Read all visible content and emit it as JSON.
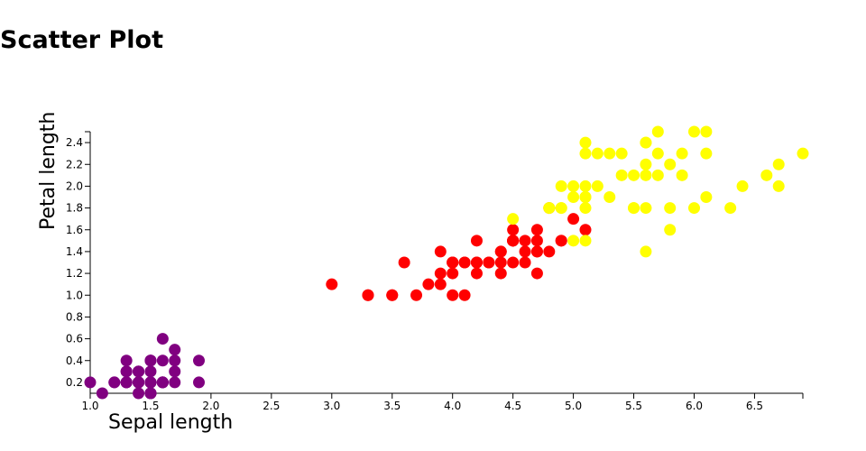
{
  "chart_data": {
    "type": "scatter",
    "title": "Scatter Plot",
    "x_label": "Sepal length",
    "y_label": "Petal length",
    "xlim": [
      1.0,
      6.9
    ],
    "ylim": [
      0.1,
      2.5
    ],
    "xticks": [
      {
        "value": 1.0,
        "label": "1.0"
      },
      {
        "value": 1.5,
        "label": "1.5"
      },
      {
        "value": 2.0,
        "label": "2.0"
      },
      {
        "value": 2.5,
        "label": "2.5"
      },
      {
        "value": 3.0,
        "label": "3.0"
      },
      {
        "value": 3.5,
        "label": "3.5"
      },
      {
        "value": 4.0,
        "label": "4.0"
      },
      {
        "value": 4.5,
        "label": "4.5"
      },
      {
        "value": 5.0,
        "label": "5.0"
      },
      {
        "value": 5.5,
        "label": "5.5"
      },
      {
        "value": 6.0,
        "label": "6.0"
      },
      {
        "value": 6.5,
        "label": "6.5"
      }
    ],
    "yticks": [
      0.2,
      0.4,
      0.6,
      0.8,
      {
        "value": 1.0,
        "label": "1.0"
      },
      1.2,
      1.4,
      1.6,
      1.8,
      {
        "value": 2.0,
        "label": "2.0"
      },
      2.2,
      2.4
    ],
    "series": [
      {
        "color": "purple",
        "x": [
          1.4,
          1.4,
          1.3,
          1.5,
          1.4,
          1.7,
          1.4,
          1.5,
          1.4,
          1.5,
          1.5,
          1.6,
          1.4,
          1.1,
          1.2,
          1.5,
          1.3,
          1.4,
          1.7,
          1.5,
          1.7,
          1.5,
          1.0,
          1.7,
          1.9,
          1.6,
          1.6,
          1.5,
          1.4,
          1.6,
          1.6,
          1.5,
          1.5,
          1.4,
          1.5,
          1.2,
          1.3,
          1.5,
          1.3,
          1.5,
          1.3,
          1.3,
          1.3,
          1.6,
          1.9,
          1.4,
          1.6,
          1.4,
          1.5,
          1.4
        ],
        "values": [
          0.2,
          0.2,
          0.2,
          0.2,
          0.2,
          0.4,
          0.3,
          0.2,
          0.2,
          0.1,
          0.2,
          0.2,
          0.1,
          0.1,
          0.2,
          0.4,
          0.4,
          0.3,
          0.3,
          0.3,
          0.2,
          0.4,
          0.2,
          0.5,
          0.2,
          0.2,
          0.4,
          0.2,
          0.2,
          0.2,
          0.2,
          0.4,
          0.1,
          0.2,
          0.1,
          0.2,
          0.2,
          0.1,
          0.2,
          0.2,
          0.3,
          0.3,
          0.2,
          0.6,
          0.4,
          0.3,
          0.2,
          0.2,
          0.2,
          0.2
        ]
      },
      {
        "color": "red",
        "x": [
          4.7,
          4.5,
          4.9,
          4.0,
          4.6,
          4.5,
          4.7,
          3.3,
          4.6,
          3.9,
          3.5,
          4.2,
          4.0,
          4.7,
          3.6,
          4.4,
          4.5,
          4.1,
          4.5,
          3.9,
          4.8,
          4.0,
          4.9,
          4.7,
          4.3,
          4.4,
          4.8,
          5.0,
          4.5,
          3.5,
          3.8,
          3.7,
          3.9,
          5.1,
          4.5,
          4.5,
          4.7,
          4.4,
          4.1,
          4.0,
          4.4,
          4.6,
          4.0,
          3.3,
          4.2,
          4.2,
          4.2,
          4.3,
          3.0,
          4.1
        ],
        "values": [
          1.4,
          1.5,
          1.5,
          1.3,
          1.5,
          1.3,
          1.6,
          1.0,
          1.3,
          1.4,
          1.0,
          1.5,
          1.0,
          1.4,
          1.3,
          1.4,
          1.5,
          1.0,
          1.5,
          1.1,
          1.8,
          1.3,
          1.5,
          1.2,
          1.3,
          1.4,
          1.4,
          1.7,
          1.5,
          1.0,
          1.1,
          1.0,
          1.2,
          1.6,
          1.5,
          1.6,
          1.5,
          1.3,
          1.3,
          1.3,
          1.2,
          1.4,
          1.2,
          1.0,
          1.3,
          1.2,
          1.3,
          1.3,
          1.1,
          1.3
        ]
      },
      {
        "color": "yellow",
        "x": [
          6.0,
          5.1,
          5.9,
          5.6,
          5.8,
          6.6,
          4.5,
          6.3,
          5.8,
          6.1,
          5.1,
          5.3,
          5.5,
          5.0,
          5.1,
          5.3,
          5.5,
          6.7,
          6.9,
          5.0,
          5.7,
          4.9,
          6.7,
          4.9,
          5.7,
          6.0,
          4.8,
          4.9,
          5.6,
          5.8,
          6.1,
          6.4,
          5.6,
          5.1,
          5.6,
          6.1,
          5.6,
          5.5,
          4.8,
          5.4,
          5.6,
          5.1,
          5.1,
          5.9,
          5.7,
          5.2,
          5.0,
          5.2,
          5.4,
          5.1
        ],
        "values": [
          2.5,
          1.9,
          2.1,
          1.8,
          2.2,
          2.1,
          1.7,
          1.8,
          1.8,
          2.5,
          2.0,
          1.9,
          2.1,
          2.0,
          2.4,
          2.3,
          1.8,
          2.2,
          2.3,
          1.5,
          2.3,
          2.0,
          2.0,
          1.8,
          2.1,
          1.8,
          1.8,
          1.8,
          2.1,
          1.6,
          1.9,
          2.0,
          2.2,
          1.5,
          1.4,
          2.3,
          2.4,
          1.8,
          1.8,
          2.1,
          2.4,
          2.3,
          1.9,
          2.3,
          2.5,
          2.3,
          1.9,
          2.0,
          2.3,
          1.8
        ]
      }
    ]
  }
}
